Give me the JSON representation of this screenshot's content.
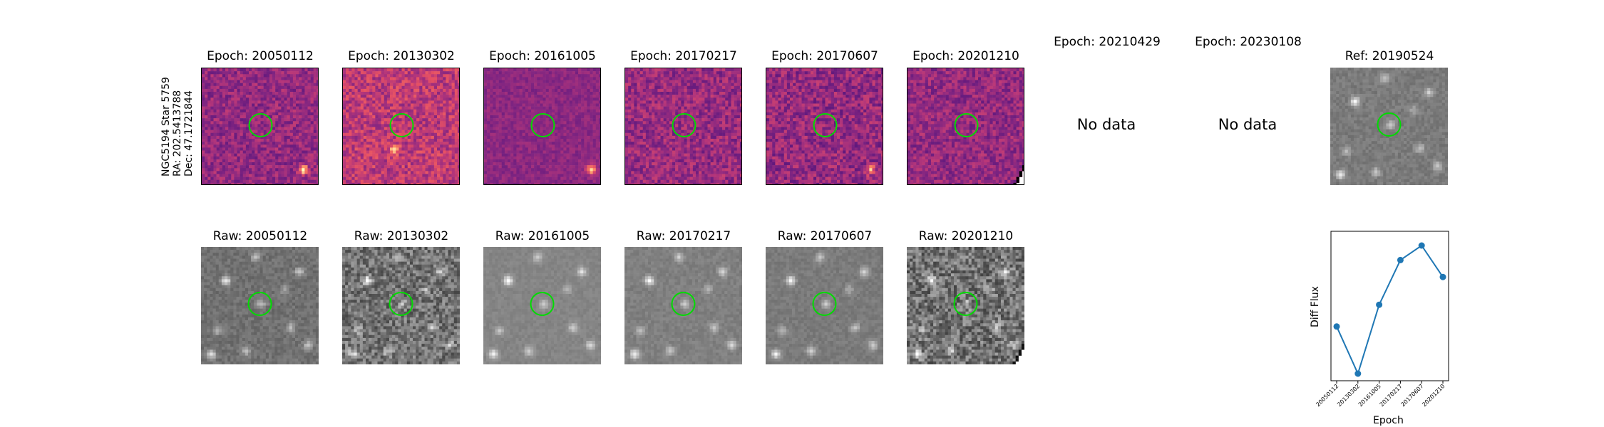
{
  "side_label": {
    "line1": "NGC5194 Star 5759",
    "line2": "RA: 202.5413788",
    "line3": "Dec: 47.1721844"
  },
  "epoch_titles": [
    "Epoch: 20050112",
    "Epoch: 20130302",
    "Epoch: 20161005",
    "Epoch: 20170217",
    "Epoch: 20170607",
    "Epoch: 20201210",
    "Epoch: 20210429",
    "Epoch: 20230108"
  ],
  "ref_title": "Ref: 20190524",
  "raw_titles": [
    "Raw: 20050112",
    "Raw: 20130302",
    "Raw: 20161005",
    "Raw: 20170217",
    "Raw: 20170607",
    "Raw: 20201210"
  ],
  "no_data_text": "No data",
  "colors": {
    "circle": "#00dd00",
    "line": "#1f77b4",
    "diff_low": "#3b0f70",
    "diff_high": "#fcfdbf"
  },
  "chart_data": {
    "type": "line",
    "x": [
      "20050112",
      "20130302",
      "20161005",
      "20170217",
      "20170607",
      "20201210"
    ],
    "values": [
      0.45,
      0.06,
      0.63,
      1.0,
      1.12,
      0.86
    ],
    "xlabel": "Epoch",
    "ylabel": "Diff Flux",
    "yticks": "none",
    "grid": false
  }
}
